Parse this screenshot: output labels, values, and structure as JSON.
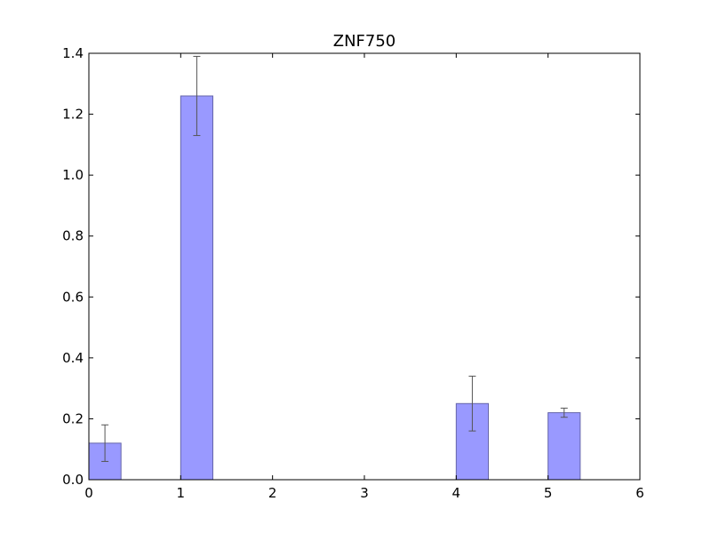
{
  "chart_data": {
    "type": "bar",
    "title": "ZNF750",
    "xlabel": "",
    "ylabel": "",
    "xlim": [
      0,
      6
    ],
    "ylim": [
      0,
      1.4
    ],
    "x_ticks": [
      "0",
      "1",
      "2",
      "3",
      "4",
      "5",
      "6"
    ],
    "y_ticks": [
      "0.0",
      "0.2",
      "0.4",
      "0.6",
      "0.8",
      "1.0",
      "1.2",
      "1.4"
    ],
    "grid": false,
    "bar_width": 0.35,
    "bar_color": "#9999ff",
    "bar_edge_color": "#6666aa",
    "error_color": "#555555",
    "bars": [
      {
        "x": 0,
        "value": 0.12,
        "error": 0.06
      },
      {
        "x": 1,
        "value": 1.26,
        "error": 0.13
      },
      {
        "x": 4,
        "value": 0.25,
        "error": 0.09
      },
      {
        "x": 5,
        "value": 0.22,
        "error": 0.015
      }
    ]
  }
}
